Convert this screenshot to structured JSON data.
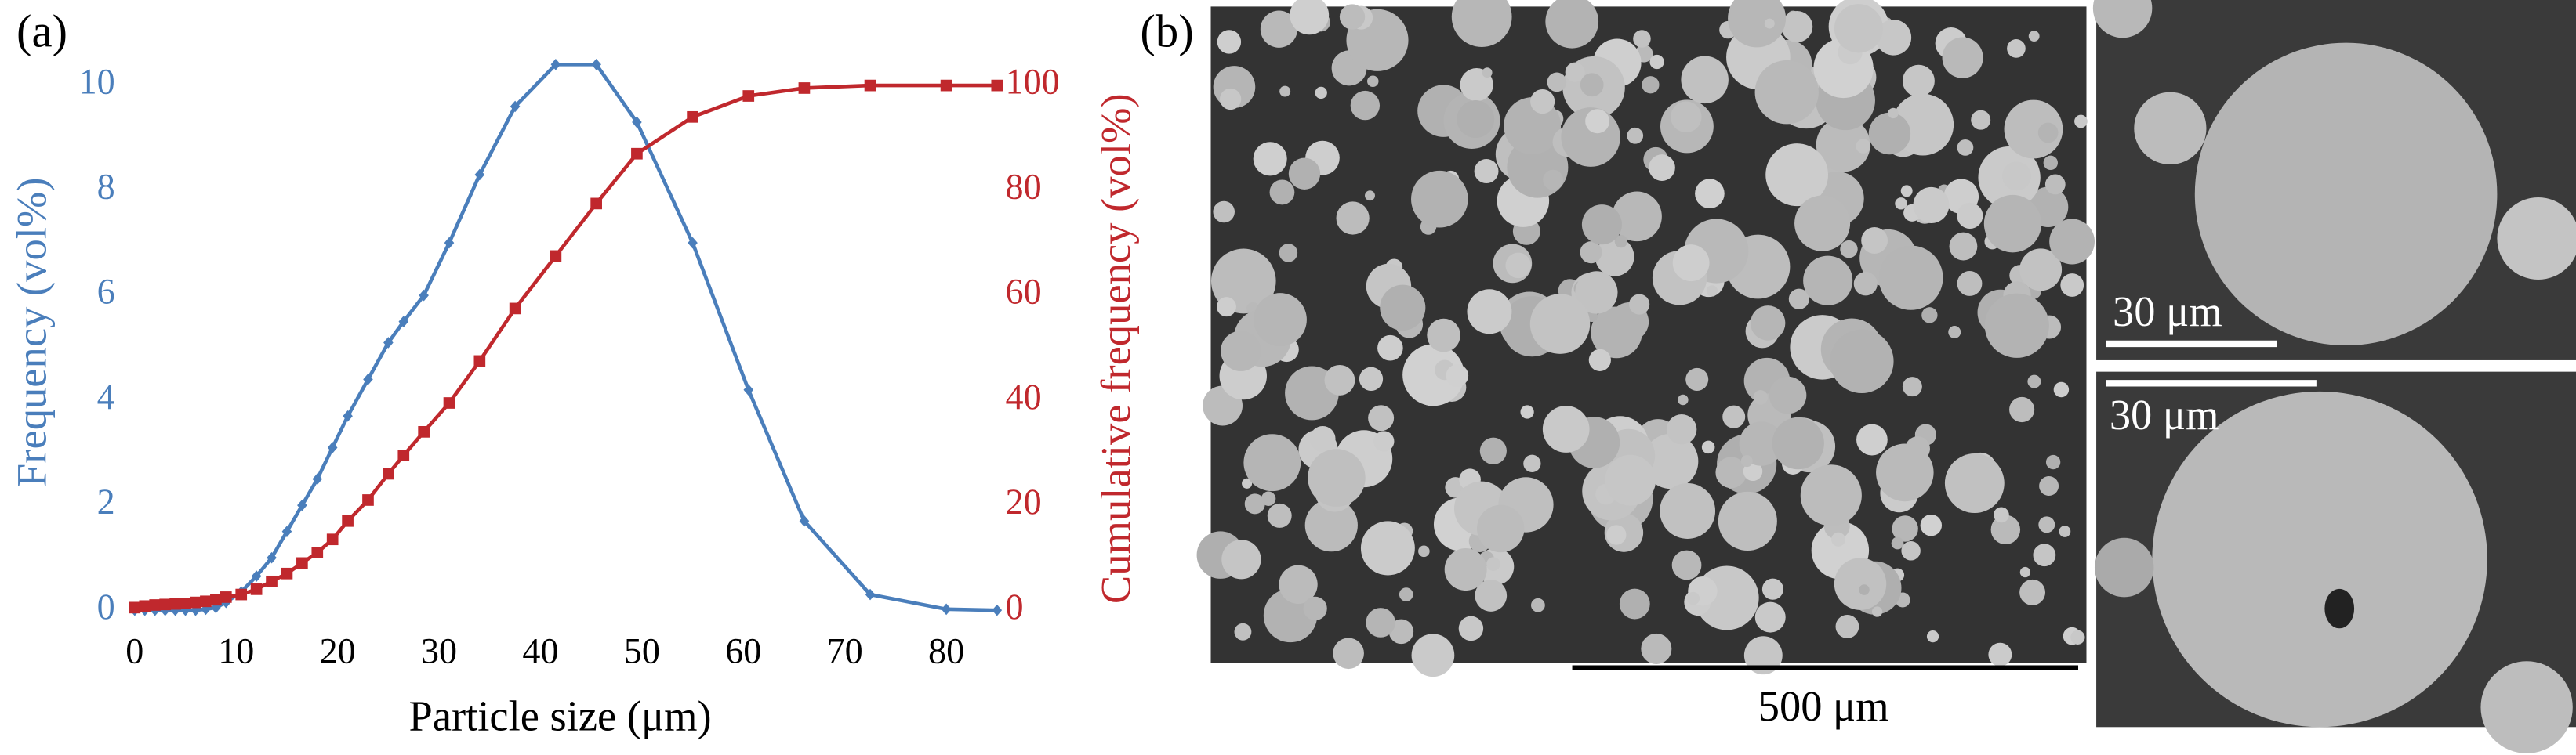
{
  "chart_data": {
    "type": "line",
    "panel_label": "(a)",
    "x_label": "Particle size (μm)",
    "y_label": "Frequency (vol%)",
    "y2_label": "Cumulative frequency (vol%)",
    "x": [
      0,
      1,
      2,
      3,
      4,
      5,
      6,
      7,
      8,
      9,
      10.5,
      12,
      13.5,
      15,
      16.5,
      18,
      19.5,
      21,
      23,
      25,
      26.5,
      28.5,
      31,
      34,
      37.5,
      41.5,
      45.5,
      49.5,
      55,
      60.5,
      66,
      72.5,
      80,
      85
    ],
    "series": [
      {
        "name": "Frequency",
        "color": "#4a7ebb",
        "marker": "diamond",
        "values": [
          0,
          0,
          0,
          0,
          0,
          0,
          0,
          0.02,
          0.05,
          0.15,
          0.35,
          0.65,
          1.0,
          1.5,
          2.0,
          2.5,
          3.1,
          3.7,
          4.4,
          5.1,
          5.5,
          6.0,
          7.0,
          8.3,
          9.6,
          10.4,
          10.4,
          9.3,
          7.0,
          4.2,
          1.7,
          0.3,
          0.02,
          0
        ]
      },
      {
        "name": "Cumulative frequency",
        "color": "#c0282d",
        "marker": "square",
        "axis": "y2",
        "values": [
          0.5,
          0.8,
          1,
          1.1,
          1.2,
          1.3,
          1.5,
          1.7,
          2,
          2.5,
          3,
          4,
          5.5,
          7,
          9,
          11,
          13.5,
          17,
          21,
          26,
          29.5,
          34,
          39.5,
          47.5,
          57.5,
          67.5,
          77.5,
          87,
          94,
          98,
          99.5,
          100,
          100,
          100
        ]
      }
    ],
    "xlim": [
      -1,
      85
    ],
    "xticks": [
      0,
      10,
      20,
      30,
      40,
      50,
      60,
      70,
      80
    ],
    "ylim": [
      0,
      10.5
    ],
    "yticks": [
      0,
      2,
      4,
      6,
      8,
      10
    ],
    "y2lim": [
      0,
      105
    ],
    "y2ticks": [
      0,
      20,
      40,
      60,
      80,
      100
    ]
  },
  "figure_b": {
    "panel_label": "(b)",
    "scale_bars": [
      "500 μm",
      "30 μm",
      "30 μm"
    ]
  }
}
